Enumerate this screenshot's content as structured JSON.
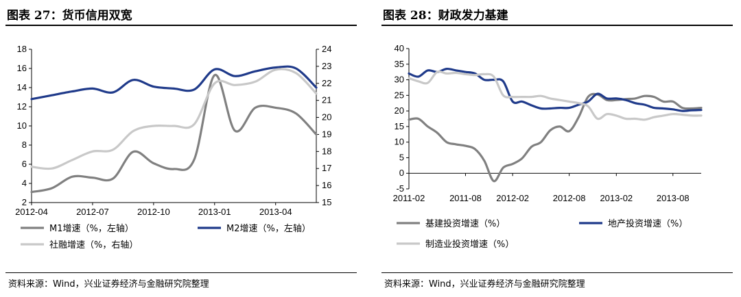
{
  "charts": [
    {
      "figure_title": "图表 27：货币信用双宽",
      "source": "资料来源：Wind，兴业证券经济与金融研究院整理"
    },
    {
      "figure_title": "图表 28：财政发力基建",
      "source": "资料来源：Wind，兴业证券经济与金融研究院整理"
    }
  ],
  "chart_data": [
    {
      "type": "line",
      "title": "图表 27：货币信用双宽",
      "x": [
        "2012-04",
        "2012-05",
        "2012-06",
        "2012-07",
        "2012-08",
        "2012-09",
        "2012-10",
        "2012-11",
        "2012-12",
        "2013-01",
        "2013-02",
        "2013-03",
        "2013-04",
        "2013-05",
        "2013-06"
      ],
      "xticks": [
        "2012-04",
        "2012-07",
        "2012-10",
        "2013-01",
        "2013-04"
      ],
      "ylim": [
        2,
        18
      ],
      "yticks": [
        2,
        4,
        6,
        8,
        10,
        12,
        14,
        16,
        18
      ],
      "y2lim": [
        15,
        24
      ],
      "y2ticks": [
        15,
        16,
        17,
        18,
        19,
        20,
        21,
        22,
        23,
        24
      ],
      "grid": false,
      "legend_position": "bottom",
      "series": [
        {
          "name": "M1增速（%，左轴）",
          "axis": "left",
          "color": "#808080",
          "values": [
            3.1,
            3.5,
            4.7,
            4.6,
            4.5,
            7.3,
            6.1,
            5.5,
            6.5,
            15.3,
            9.5,
            11.9,
            11.9,
            11.3,
            9.1
          ]
        },
        {
          "name": "M2增速（%，左轴）",
          "axis": "left",
          "color": "#1f3a8a",
          "values": [
            12.8,
            13.2,
            13.6,
            13.9,
            13.5,
            14.8,
            14.1,
            13.9,
            13.8,
            15.9,
            15.2,
            15.7,
            16.1,
            16.0,
            14.0
          ]
        },
        {
          "name": "社融增速（%，右轴）",
          "axis": "right",
          "color": "#c8c8c8",
          "values": [
            17.1,
            17.0,
            17.5,
            18.0,
            18.1,
            19.2,
            19.5,
            19.5,
            19.6,
            22.0,
            21.9,
            22.1,
            22.8,
            22.6,
            21.4
          ]
        }
      ]
    },
    {
      "type": "line",
      "title": "图表 28：财政发力基建",
      "x": [
        "2011-02",
        "2011-03",
        "2011-04",
        "2011-05",
        "2011-06",
        "2011-07",
        "2011-08",
        "2011-09",
        "2011-10",
        "2011-11",
        "2011-12",
        "2012-02",
        "2012-03",
        "2012-04",
        "2012-05",
        "2012-06",
        "2012-07",
        "2012-08",
        "2012-09",
        "2012-10",
        "2012-11",
        "2012-12",
        "2013-02",
        "2013-03",
        "2013-04",
        "2013-05",
        "2013-06",
        "2013-07",
        "2013-08",
        "2013-09",
        "2013-10",
        "2013-11"
      ],
      "xticks": [
        "2011-02",
        "2011-08",
        "2012-02",
        "2012-08",
        "2013-02",
        "2013-08"
      ],
      "ylim": [
        -5,
        40
      ],
      "yticks": [
        -5,
        0,
        5,
        10,
        15,
        20,
        25,
        30,
        35,
        40
      ],
      "grid": false,
      "legend_position": "bottom",
      "series": [
        {
          "name": "基建投资增速（%）",
          "color": "#808080",
          "values": [
            17.2,
            17.5,
            15.0,
            13.0,
            10.0,
            9.3,
            8.8,
            7.8,
            4.0,
            -2.5,
            1.8,
            3.0,
            4.8,
            8.5,
            10.0,
            13.8,
            15.0,
            13.5,
            18.0,
            24.5,
            25.3,
            23.5,
            23.5,
            23.8,
            24.0,
            24.8,
            24.5,
            23.0,
            23.0,
            21.0,
            20.8,
            21.0
          ]
        },
        {
          "name": "地产投资增速（%）",
          "color": "#1f3a8a",
          "values": [
            32.0,
            31.0,
            33.0,
            32.5,
            33.5,
            33.0,
            32.5,
            32.0,
            30.0,
            30.0,
            29.5,
            23.0,
            23.0,
            21.8,
            20.8,
            20.8,
            21.0,
            21.0,
            22.0,
            23.0,
            25.5,
            24.0,
            24.0,
            23.5,
            22.5,
            22.0,
            21.0,
            20.8,
            20.5,
            20.0,
            20.2,
            20.3
          ]
        },
        {
          "name": "制造业投资增速（%）",
          "color": "#c8c8c8",
          "values": [
            30.5,
            29.5,
            29.0,
            32.5,
            32.0,
            32.2,
            31.8,
            31.5,
            31.8,
            31.0,
            25.0,
            24.5,
            24.5,
            24.5,
            24.8,
            24.0,
            23.5,
            23.0,
            22.5,
            21.5,
            17.5,
            19.0,
            18.5,
            17.5,
            17.5,
            17.2,
            18.0,
            18.5,
            19.0,
            18.8,
            18.5,
            18.5
          ]
        }
      ]
    }
  ]
}
